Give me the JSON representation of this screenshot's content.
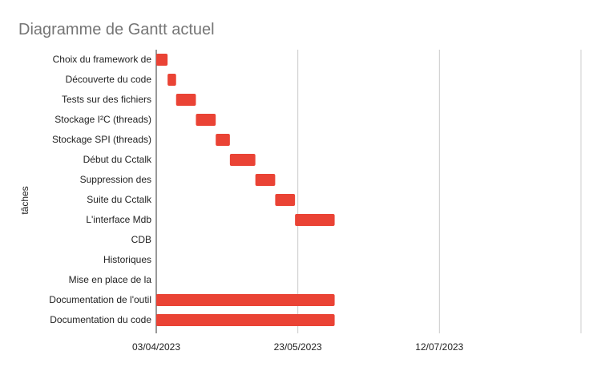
{
  "chart_data": {
    "type": "bar",
    "orientation": "horizontal-gantt",
    "title": "Diagramme de Gantt actuel",
    "ylabel": "tâches",
    "xlabel": "",
    "x_ticks": [
      "03/04/2023",
      "23/05/2023",
      "12/07/2023"
    ],
    "x_range": [
      "2023-04-03",
      "2023-08-31"
    ],
    "grid": true,
    "bar_color": "#ea4335",
    "tasks": [
      {
        "name": "Choix du framework de",
        "start": "2023-04-03",
        "end": "2023-04-07"
      },
      {
        "name": "Découverte du code",
        "start": "2023-04-07",
        "end": "2023-04-10"
      },
      {
        "name": "Tests sur des fichiers",
        "start": "2023-04-10",
        "end": "2023-04-17"
      },
      {
        "name": "Stockage I²C (threads)",
        "start": "2023-04-17",
        "end": "2023-04-24"
      },
      {
        "name": "Stockage SPI (threads)",
        "start": "2023-04-24",
        "end": "2023-04-29"
      },
      {
        "name": "Début du Cctalk",
        "start": "2023-04-29",
        "end": "2023-05-08"
      },
      {
        "name": "Suppression des",
        "start": "2023-05-08",
        "end": "2023-05-15"
      },
      {
        "name": "Suite du Cctalk",
        "start": "2023-05-15",
        "end": "2023-05-22"
      },
      {
        "name": "L'interface Mdb",
        "start": "2023-05-22",
        "end": "2023-06-05"
      },
      {
        "name": "CDB",
        "start": null,
        "end": null
      },
      {
        "name": "Historiques",
        "start": null,
        "end": null
      },
      {
        "name": "Mise en place de la",
        "start": null,
        "end": null
      },
      {
        "name": "Documentation de l'outil",
        "start": "2023-04-03",
        "end": "2023-06-05"
      },
      {
        "name": "Documentation du code",
        "start": "2023-04-03",
        "end": "2023-06-05"
      }
    ]
  }
}
